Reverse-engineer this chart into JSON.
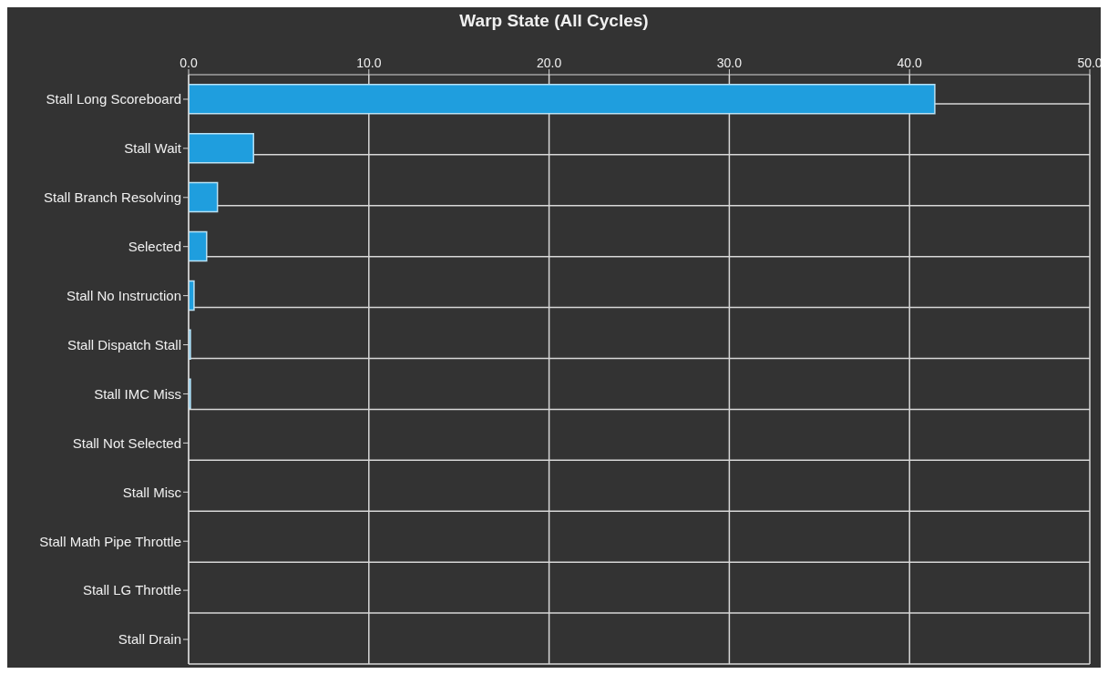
{
  "chart_data": {
    "type": "bar",
    "orientation": "horizontal",
    "title": "Warp State (All Cycles)",
    "categories": [
      "Stall Long Scoreboard",
      "Stall Wait",
      "Stall Branch Resolving",
      "Selected",
      "Stall No Instruction",
      "Stall Dispatch Stall",
      "Stall IMC Miss",
      "Stall Not Selected",
      "Stall Misc",
      "Stall Math Pipe Throttle",
      "Stall LG Throttle",
      "Stall Drain"
    ],
    "values": [
      41.4,
      3.6,
      1.6,
      1.0,
      0.3,
      0.1,
      0.1,
      null,
      null,
      null,
      null,
      null
    ],
    "color": "#1f9ede",
    "xlim": [
      0,
      50
    ],
    "xticks": [
      {
        "value": 0,
        "label": "0.0"
      },
      {
        "value": 10,
        "label": "10.0"
      },
      {
        "value": 20,
        "label": "20.0"
      },
      {
        "value": 30,
        "label": "30.0"
      },
      {
        "value": 40,
        "label": "40.0"
      },
      {
        "value": 50,
        "label": "50.0"
      }
    ],
    "grid": true,
    "legend": false
  }
}
